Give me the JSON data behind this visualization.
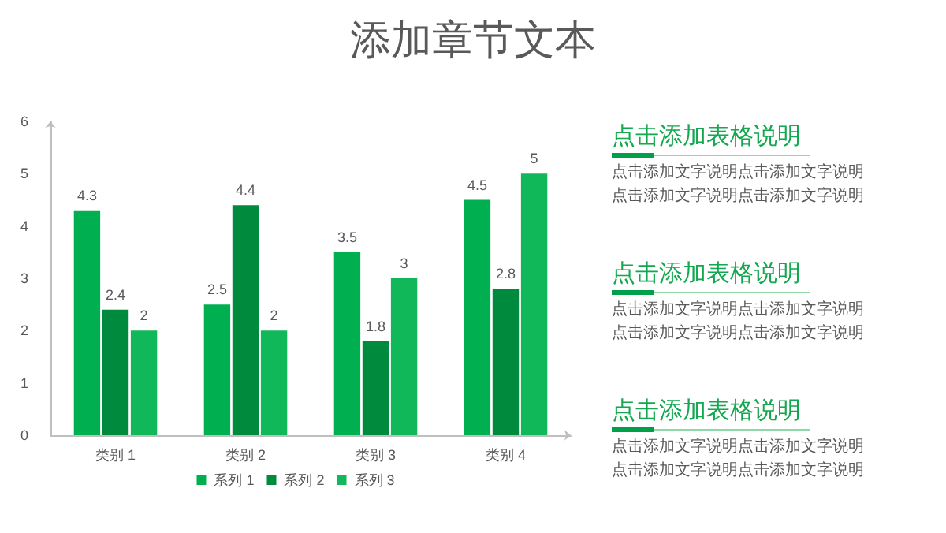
{
  "chart_data": [
    {
      "type": "bar",
      "title": "添加章节文本",
      "categories": [
        "类别 1",
        "类别 2",
        "类别 3",
        "类别 4"
      ],
      "series": [
        {
          "name": "系列 1",
          "color": "#00b050",
          "values": [
            4.3,
            2.5,
            3.5,
            4.5
          ]
        },
        {
          "name": "系列 2",
          "color": "#008a3e",
          "values": [
            2.4,
            4.4,
            1.8,
            2.8
          ]
        },
        {
          "name": "系列 3",
          "color": "#10b85a",
          "values": [
            2,
            2,
            3,
            5
          ]
        }
      ],
      "ylim": [
        0,
        6
      ],
      "yticks": [
        0,
        1,
        2,
        3,
        4,
        5,
        6
      ],
      "grid": false,
      "legend": "bottom",
      "data_labels": true
    },
    {
      "type": "other",
      "annotations": [
        "点击添加表格说明",
        "点击添加文字说明点击添加文字说明",
        "点击添加文字说明点击添加文字说明",
        "点击添加表格说明",
        "点击添加文字说明点击添加文字说明",
        "点击添加文字说明点击添加文字说明",
        "点击添加表格说明",
        "点击添加文字说明点击添加文字说明",
        "点击添加文字说明点击添加文字说明"
      ]
    }
  ]
}
